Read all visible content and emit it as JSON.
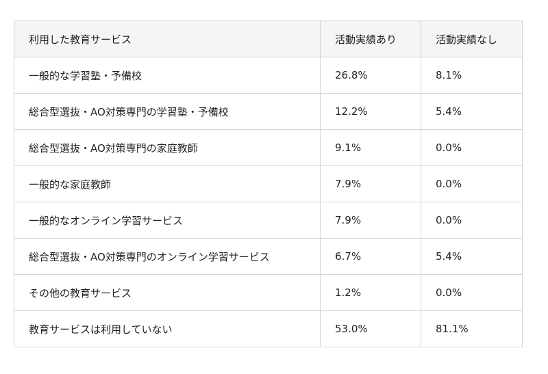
{
  "table": {
    "headers": [
      "利用した教育サービス",
      "活動実績あり",
      "活動実績なし"
    ],
    "rows": [
      {
        "service": "一般的な学習塾・予備校",
        "with_activity": "26.8%",
        "without_activity": "8.1%"
      },
      {
        "service": "総合型選抜・AO対策専門の学習塾・予備校",
        "with_activity": "12.2%",
        "without_activity": "5.4%"
      },
      {
        "service": "総合型選抜・AO対策専門の家庭教師",
        "with_activity": "9.1%",
        "without_activity": "0.0%"
      },
      {
        "service": "一般的な家庭教師",
        "with_activity": "7.9%",
        "without_activity": "0.0%"
      },
      {
        "service": "一般的なオンライン学習サービス",
        "with_activity": "7.9%",
        "without_activity": "0.0%"
      },
      {
        "service": "総合型選抜・AO対策専門のオンライン学習サービス",
        "with_activity": "6.7%",
        "without_activity": "5.4%"
      },
      {
        "service": "その他の教育サービス",
        "with_activity": "1.2%",
        "without_activity": "0.0%"
      },
      {
        "service": "教育サービスは利用していない",
        "with_activity": "53.0%",
        "without_activity": "81.1%"
      }
    ]
  }
}
